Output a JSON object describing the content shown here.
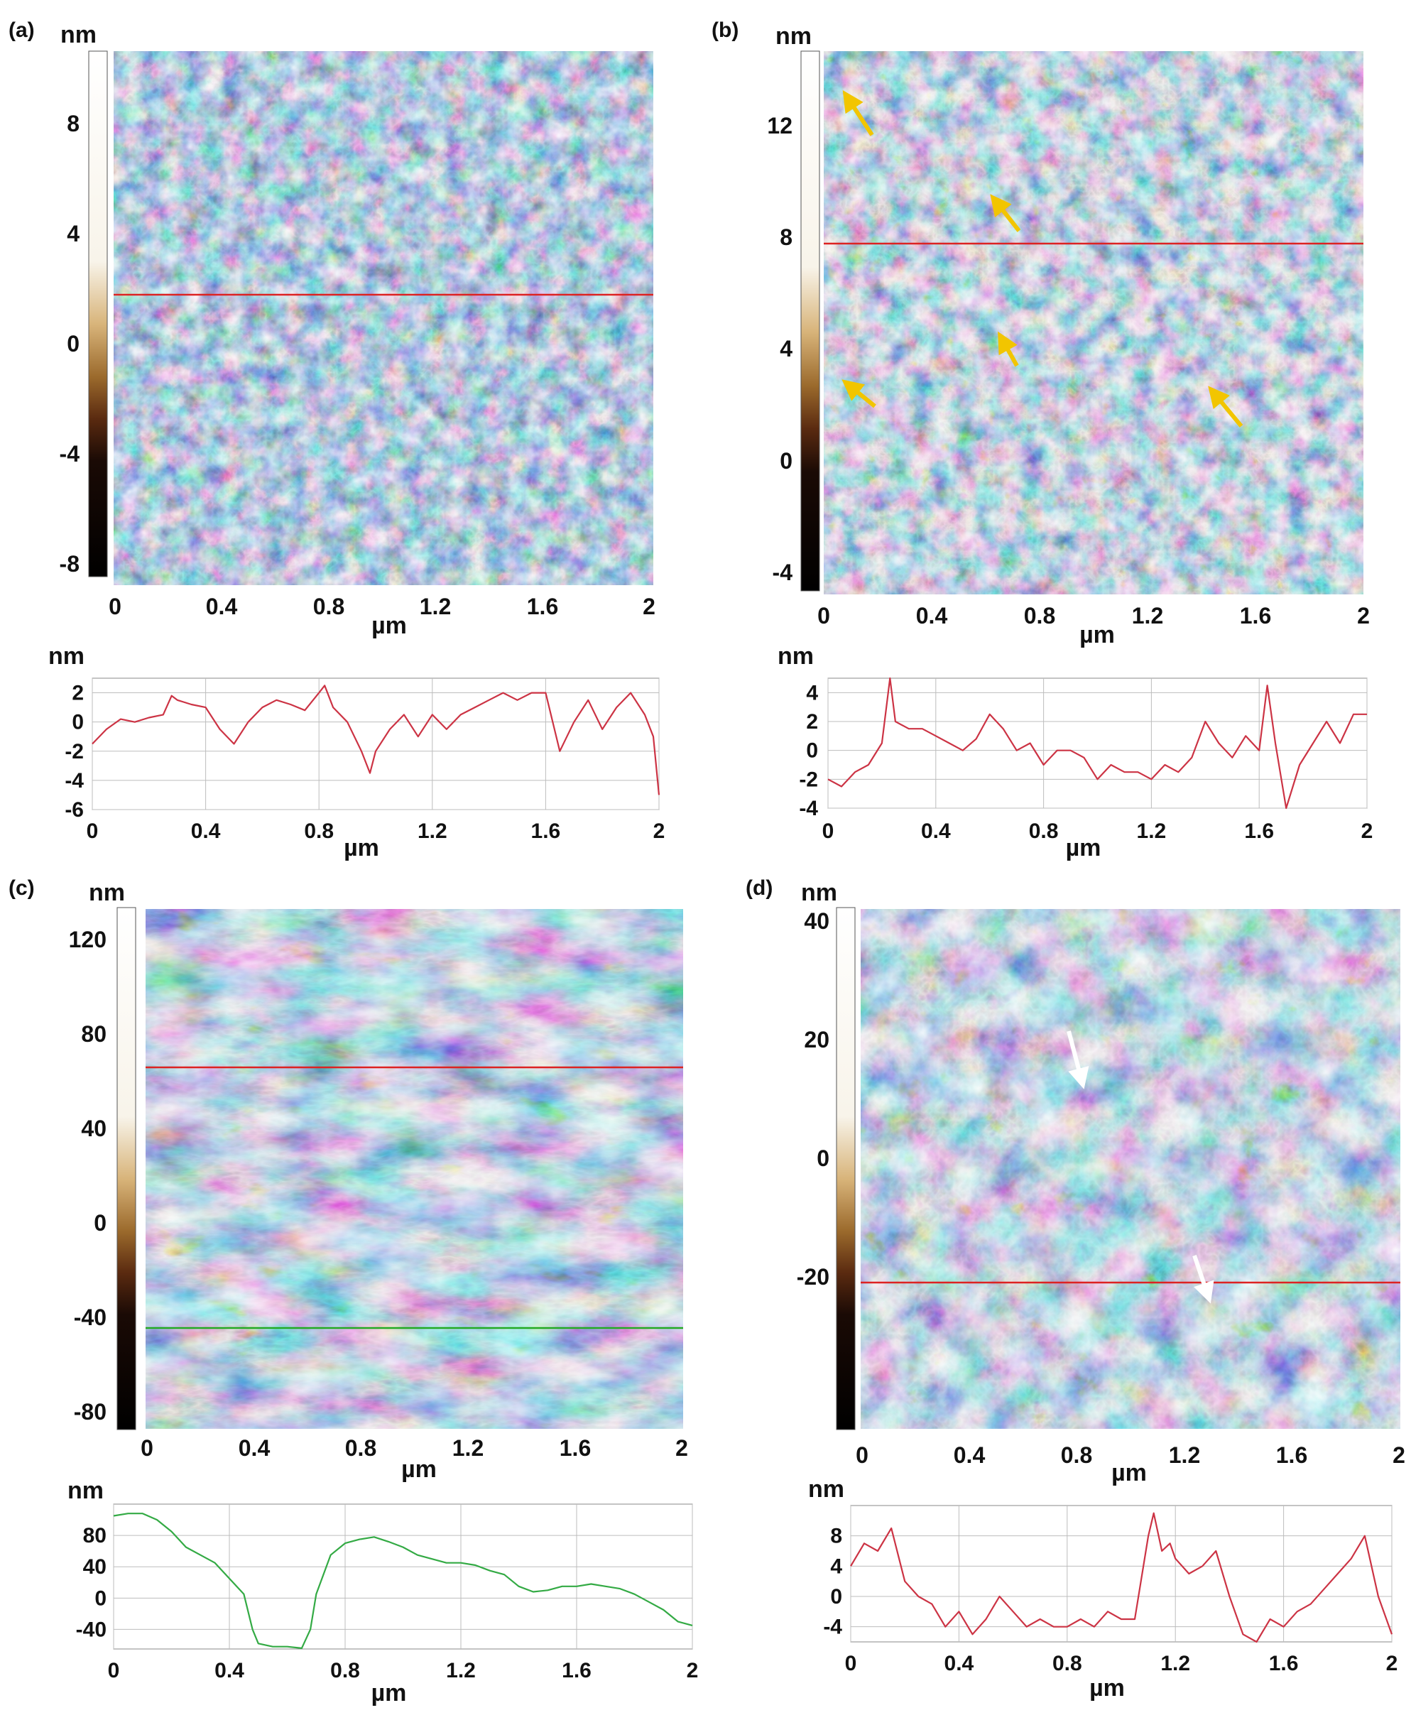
{
  "colors": {
    "profile_red": "#cc3344",
    "profile_green": "#33aa44",
    "scan_red_line": "#dd2222",
    "scan_green_line": "#22aa22",
    "afm_blue": "#4f7fb4",
    "afm_blue_dark": "#223a5c",
    "afm_light": "#d9dde0",
    "afm_orange": "#d28c4a",
    "afm_dark": "#0f141a",
    "arrow_yellow": "#f2c500",
    "arrow_white": "#ffffff"
  },
  "panels": [
    {
      "label": "(a)",
      "unit": "nm",
      "colorbar_ticks": [
        "8",
        "4",
        "0",
        "-4",
        "-8"
      ],
      "x_ticks": [
        "0",
        "0.4",
        "0.8",
        "1.2",
        "1.6",
        "2"
      ],
      "x_unit": "µm",
      "profile_unit": "nm",
      "profile_y_ticks": [
        "2",
        "0",
        "-2",
        "-4",
        "-6"
      ],
      "profile_x_ticks": [
        "0",
        "0.4",
        "0.8",
        "1.2",
        "1.6",
        "2"
      ],
      "profile_x_unit": "µm",
      "arrows": "none"
    },
    {
      "label": "(b)",
      "unit": "nm",
      "colorbar_ticks": [
        "12",
        "8",
        "4",
        "0",
        "-4"
      ],
      "x_ticks": [
        "0",
        "0.4",
        "0.8",
        "1.2",
        "1.6",
        "2"
      ],
      "x_unit": "µm",
      "profile_unit": "nm",
      "profile_y_ticks": [
        "4",
        "2",
        "0",
        "-2",
        "-4"
      ],
      "profile_x_ticks": [
        "0",
        "0.4",
        "0.8",
        "1.2",
        "1.6",
        "2"
      ],
      "profile_x_unit": "µm",
      "arrows": "yellow"
    },
    {
      "label": "(c)",
      "unit": "nm",
      "colorbar_ticks": [
        "120",
        "80",
        "40",
        "0",
        "-40",
        "-80"
      ],
      "x_ticks": [
        "0",
        "0.4",
        "0.8",
        "1.2",
        "1.6",
        "2"
      ],
      "x_unit": "µm",
      "profile_unit": "nm",
      "profile_y_ticks": [
        "80",
        "40",
        "0",
        "-40"
      ],
      "profile_x_ticks": [
        "0",
        "0.4",
        "0.8",
        "1.2",
        "1.6",
        "2"
      ],
      "profile_x_unit": "µm",
      "arrows": "none"
    },
    {
      "label": "(d)",
      "unit": "nm",
      "colorbar_ticks": [
        "40",
        "20",
        "0",
        "-20"
      ],
      "x_ticks": [
        "0",
        "0.4",
        "0.8",
        "1.2",
        "1.6",
        "2"
      ],
      "x_unit": "µm",
      "profile_unit": "nm",
      "profile_y_ticks": [
        "8",
        "4",
        "0",
        "-4"
      ],
      "profile_x_ticks": [
        "0",
        "0.4",
        "0.8",
        "1.2",
        "1.6",
        "2"
      ],
      "profile_x_unit": "µm",
      "arrows": "white"
    }
  ],
  "chart_data": [
    {
      "type": "line",
      "panel": "(a)",
      "xlabel": "µm",
      "ylabel": "nm",
      "xlim": [
        0,
        2
      ],
      "ylim": [
        -6,
        3
      ],
      "grid": true,
      "series": [
        {
          "x": [
            0,
            0.05,
            0.1,
            0.15,
            0.2,
            0.25,
            0.28,
            0.3,
            0.35,
            0.4,
            0.45,
            0.5,
            0.55,
            0.6,
            0.65,
            0.7,
            0.75,
            0.8,
            0.82,
            0.85,
            0.9,
            0.95,
            0.98,
            1.0,
            1.05,
            1.1,
            1.15,
            1.2,
            1.25,
            1.3,
            1.35,
            1.4,
            1.45,
            1.5,
            1.55,
            1.6,
            1.65,
            1.7,
            1.75,
            1.8,
            1.85,
            1.9,
            1.95,
            1.98,
            2.0
          ],
          "y": [
            -1.5,
            -0.5,
            0.2,
            0.0,
            0.3,
            0.5,
            1.8,
            1.5,
            1.2,
            1.0,
            -0.5,
            -1.5,
            0.0,
            1.0,
            1.5,
            1.2,
            0.8,
            2.0,
            2.5,
            1.0,
            0.0,
            -2.0,
            -3.5,
            -2.0,
            -0.5,
            0.5,
            -1.0,
            0.5,
            -0.5,
            0.5,
            1.0,
            1.5,
            2.0,
            1.5,
            2.0,
            2.0,
            -2.0,
            0.0,
            1.5,
            -0.5,
            1.0,
            2.0,
            0.5,
            -1.0,
            -5.0
          ]
        }
      ]
    },
    {
      "type": "line",
      "panel": "(b)",
      "xlabel": "µm",
      "ylabel": "nm",
      "xlim": [
        0,
        2
      ],
      "ylim": [
        -4,
        5
      ],
      "grid": true,
      "series": [
        {
          "x": [
            0,
            0.05,
            0.1,
            0.15,
            0.2,
            0.23,
            0.25,
            0.3,
            0.35,
            0.4,
            0.45,
            0.5,
            0.55,
            0.6,
            0.65,
            0.7,
            0.75,
            0.8,
            0.85,
            0.9,
            0.95,
            1.0,
            1.05,
            1.1,
            1.15,
            1.2,
            1.25,
            1.3,
            1.35,
            1.4,
            1.45,
            1.5,
            1.55,
            1.6,
            1.63,
            1.66,
            1.7,
            1.75,
            1.8,
            1.85,
            1.9,
            1.95,
            2.0
          ],
          "y": [
            -2.0,
            -2.5,
            -1.5,
            -1.0,
            0.5,
            5.0,
            2.0,
            1.5,
            1.5,
            1.0,
            0.5,
            0.0,
            0.8,
            2.5,
            1.5,
            0.0,
            0.5,
            -1.0,
            0.0,
            0.0,
            -0.5,
            -2.0,
            -1.0,
            -1.5,
            -1.5,
            -2.0,
            -1.0,
            -1.5,
            -0.5,
            2.0,
            0.5,
            -0.5,
            1.0,
            0.0,
            4.5,
            0.5,
            -4.0,
            -1.0,
            0.5,
            2.0,
            0.5,
            2.5,
            2.5
          ]
        }
      ]
    },
    {
      "type": "line",
      "panel": "(c)",
      "xlabel": "µm",
      "ylabel": "nm",
      "xlim": [
        0,
        2
      ],
      "ylim": [
        -65,
        120
      ],
      "grid": true,
      "series": [
        {
          "x": [
            0,
            0.05,
            0.1,
            0.15,
            0.2,
            0.25,
            0.3,
            0.35,
            0.4,
            0.45,
            0.48,
            0.5,
            0.55,
            0.6,
            0.65,
            0.68,
            0.7,
            0.75,
            0.8,
            0.85,
            0.9,
            0.95,
            1.0,
            1.05,
            1.1,
            1.15,
            1.2,
            1.25,
            1.3,
            1.35,
            1.4,
            1.45,
            1.5,
            1.55,
            1.6,
            1.65,
            1.7,
            1.75,
            1.8,
            1.85,
            1.9,
            1.95,
            2.0
          ],
          "y": [
            105,
            108,
            108,
            100,
            85,
            65,
            55,
            45,
            25,
            5,
            -40,
            -58,
            -62,
            -62,
            -64,
            -40,
            5,
            55,
            70,
            75,
            78,
            72,
            65,
            55,
            50,
            45,
            45,
            42,
            35,
            30,
            15,
            8,
            10,
            15,
            15,
            18,
            15,
            12,
            5,
            -5,
            -15,
            -30,
            -35
          ]
        }
      ]
    },
    {
      "type": "line",
      "panel": "(d)",
      "xlabel": "µm",
      "ylabel": "nm",
      "xlim": [
        0,
        2
      ],
      "ylim": [
        -6,
        12
      ],
      "grid": true,
      "series": [
        {
          "x": [
            0,
            0.05,
            0.1,
            0.15,
            0.2,
            0.25,
            0.3,
            0.35,
            0.4,
            0.45,
            0.5,
            0.55,
            0.6,
            0.65,
            0.7,
            0.75,
            0.8,
            0.85,
            0.9,
            0.95,
            1.0,
            1.05,
            1.1,
            1.12,
            1.15,
            1.18,
            1.2,
            1.25,
            1.3,
            1.35,
            1.4,
            1.45,
            1.5,
            1.55,
            1.6,
            1.65,
            1.7,
            1.75,
            1.8,
            1.85,
            1.9,
            1.95,
            2.0
          ],
          "y": [
            4,
            7,
            6,
            9,
            2,
            0,
            -1,
            -4,
            -2,
            -5,
            -3,
            0,
            -2,
            -4,
            -3,
            -4,
            -4,
            -3,
            -4,
            -2,
            -3,
            -3,
            8,
            11,
            6,
            7,
            5,
            3,
            4,
            6,
            0,
            -5,
            -6,
            -3,
            -4,
            -2,
            -1,
            1,
            3,
            5,
            8,
            0,
            -5
          ]
        }
      ]
    }
  ]
}
